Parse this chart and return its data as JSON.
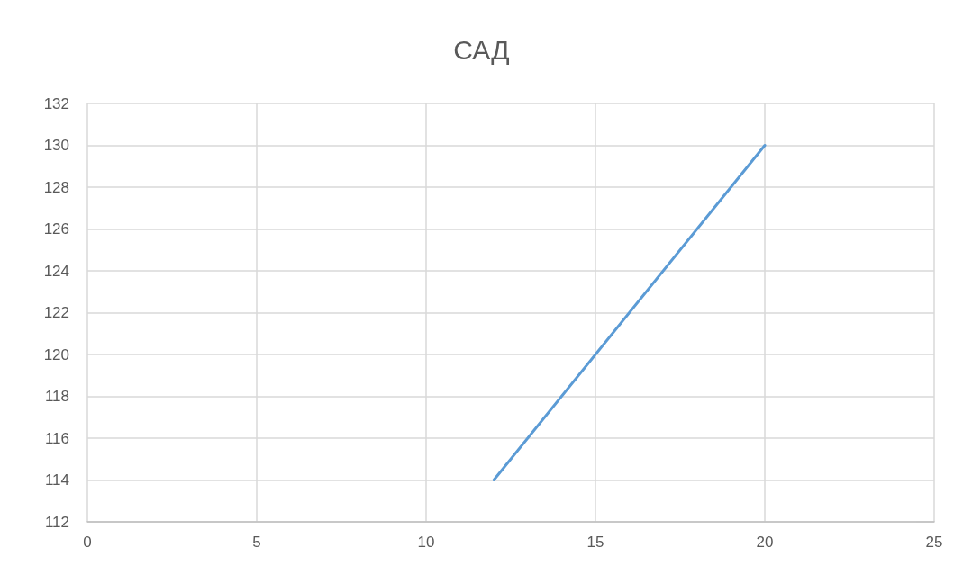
{
  "chart_data": {
    "type": "line",
    "title": "САД",
    "x": [
      12,
      20
    ],
    "series": [
      {
        "color": "#5b9bd5",
        "values": [
          114,
          130
        ]
      }
    ],
    "xlim": [
      0,
      25
    ],
    "xticks": [
      0,
      5,
      10,
      15,
      20,
      25
    ],
    "ylim": [
      112,
      132
    ],
    "yticks": [
      112,
      114,
      116,
      118,
      120,
      122,
      124,
      126,
      128,
      130,
      132
    ],
    "grid": true,
    "marker": "none",
    "line_style": "solid"
  }
}
